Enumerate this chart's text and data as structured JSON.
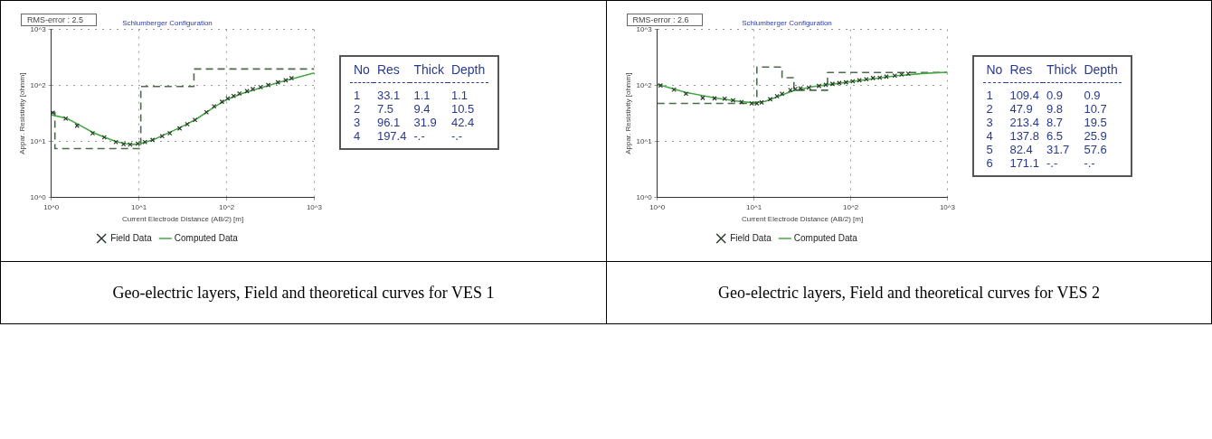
{
  "chart_data": [
    {
      "type": "line",
      "title": "Schlumberger Configuration",
      "xlabel": "Current Electrode Distance (AB/2) [m]",
      "ylabel": "Appar. Resistivity [ohmm]",
      "log": "xy",
      "grid": true,
      "legend": "bottom",
      "xlim": [
        1,
        1000
      ],
      "ylim": [
        1,
        1000
      ],
      "xticks": [
        {
          "value": 1,
          "label": "10^0"
        },
        {
          "value": 10,
          "label": "10^1"
        },
        {
          "value": 100,
          "label": "10^2"
        },
        {
          "value": 1000,
          "label": "10^3"
        }
      ],
      "yticks": [
        {
          "value": 1,
          "label": "10^0"
        },
        {
          "value": 10,
          "label": "10^1"
        },
        {
          "value": 100,
          "label": "10^2"
        },
        {
          "value": 1000,
          "label": "10^3"
        }
      ],
      "series": [
        {
          "type": "step",
          "color": "#4d6b4d",
          "line_style": "dashed",
          "marker": "none",
          "x": [
            1,
            1.1,
            10.5,
            42.4,
            1000
          ],
          "values": [
            33.1,
            7.5,
            96.1,
            197.4,
            197.4
          ]
        },
        {
          "type": "line",
          "name": "Computed Data",
          "color": "#45a845",
          "line_style": "solid",
          "marker": "none",
          "x": [
            1,
            1.5,
            2,
            3,
            4,
            5.5,
            7,
            8.5,
            10,
            12,
            15,
            20,
            30,
            45,
            70,
            100,
            150,
            250,
            400,
            700,
            1000
          ],
          "values": [
            30,
            26,
            20.5,
            14.5,
            12,
            10,
            9.2,
            8.9,
            9.1,
            9.8,
            11,
            13.5,
            18,
            25,
            40,
            56,
            72,
            92,
            115,
            145,
            167
          ]
        },
        {
          "type": "scatter",
          "name": "Field Data",
          "color": "#2b3a2b",
          "marker": "cross",
          "x": [
            1.04,
            1.46,
            1.97,
            2.96,
            4.02,
            5.45,
            6.67,
            7.93,
            9.7,
            11.7,
            14.3,
            18.4,
            22.5,
            29.1,
            35.6,
            43.6,
            59,
            72,
            88.5,
            103,
            120,
            140,
            171,
            199,
            244,
            299,
            385,
            472,
            550
          ],
          "values": [
            32.7,
            25.7,
            19.2,
            14.1,
            11.9,
            9.8,
            9,
            8.85,
            9.2,
            9.8,
            10.7,
            12.5,
            14.1,
            17.2,
            20.4,
            24.3,
            33.3,
            42.5,
            51.3,
            58.8,
            65.2,
            72.2,
            79.4,
            86.5,
            93.5,
            102,
            114,
            124,
            135
          ]
        }
      ],
      "annotations": [
        "RMS-error : 2.5",
        "No Res Thick Depth",
        "1 33.1 1.1 1.1",
        "2 7.5 9.4 10.5",
        "3 96.1 31.9 42.4",
        "4 197.4 -.- -.-",
        "Geo-electric layers, Field and theoretical curves for VES 1"
      ]
    },
    {
      "type": "line",
      "title": "Schlumberger Configuration",
      "xlabel": "Current Electrode Distance (AB/2) [m]",
      "ylabel": "Appar. Resistivity [ohmm]",
      "log": "xy",
      "grid": true,
      "legend": "bottom",
      "xlim": [
        1,
        1000
      ],
      "ylim": [
        1,
        1000
      ],
      "xticks": [
        {
          "value": 1,
          "label": "10^0"
        },
        {
          "value": 10,
          "label": "10^1"
        },
        {
          "value": 100,
          "label": "10^2"
        },
        {
          "value": 1000,
          "label": "10^3"
        }
      ],
      "yticks": [
        {
          "value": 1,
          "label": "10^0"
        },
        {
          "value": 10,
          "label": "10^1"
        },
        {
          "value": 100,
          "label": "10^2"
        },
        {
          "value": 1000,
          "label": "10^3"
        }
      ],
      "series": [
        {
          "type": "step",
          "color": "#4d6b4d",
          "line_style": "dashed",
          "marker": "none",
          "x": [
            1,
            10.7,
            19.5,
            25.9,
            57.6,
            1000
          ],
          "values": [
            47.9,
            213.4,
            137.8,
            82.4,
            171.1,
            171.1
          ]
        },
        {
          "type": "line",
          "name": "Computed Data",
          "color": "#45a845",
          "line_style": "solid",
          "marker": "none",
          "x": [
            1,
            2,
            4,
            7,
            10,
            13,
            17,
            25,
            40,
            70,
            150,
            300,
            600,
            1000
          ],
          "values": [
            105,
            75,
            60,
            52,
            49,
            52,
            62,
            80,
            95,
            108,
            128,
            150,
            165,
            172
          ]
        },
        {
          "type": "scatter",
          "name": "Field Data",
          "color": "#2b3a2b",
          "marker": "cross",
          "x": [
            1.08,
            1.49,
            1.98,
            2.95,
            3.91,
            4.98,
            6.08,
            7.43,
            9.46,
            10.7,
            12,
            14.7,
            17.3,
            19.5,
            23.8,
            26.8,
            30.3,
            37,
            47,
            55.2,
            64.9,
            76.2,
            89.4,
            105,
            123,
            145,
            170,
            200,
            234,
            286,
            336,
            394
          ],
          "values": [
            100,
            84.4,
            71.2,
            60.1,
            59.1,
            58.2,
            54.4,
            50.8,
            47.9,
            47.9,
            50,
            56.8,
            64.4,
            71.2,
            83,
            86.6,
            88.9,
            91.9,
            98.4,
            103,
            107,
            111,
            114,
            119,
            124,
            129,
            136,
            138,
            144,
            150,
            157,
            163
          ]
        }
      ],
      "annotations": [
        "RMS-error : 2.6",
        "No Res Thick Depth",
        "1 109.4 0.9 0.9",
        "2 47.9 9.8 10.7",
        "3 213.4 8.7 19.5",
        "4 137.8 6.5 25.9",
        "5 82.4 31.7 57.6",
        "6 171.1 -.- -.-",
        "Geo-electric layers, Field and theoretical curves for VES 2"
      ]
    }
  ]
}
